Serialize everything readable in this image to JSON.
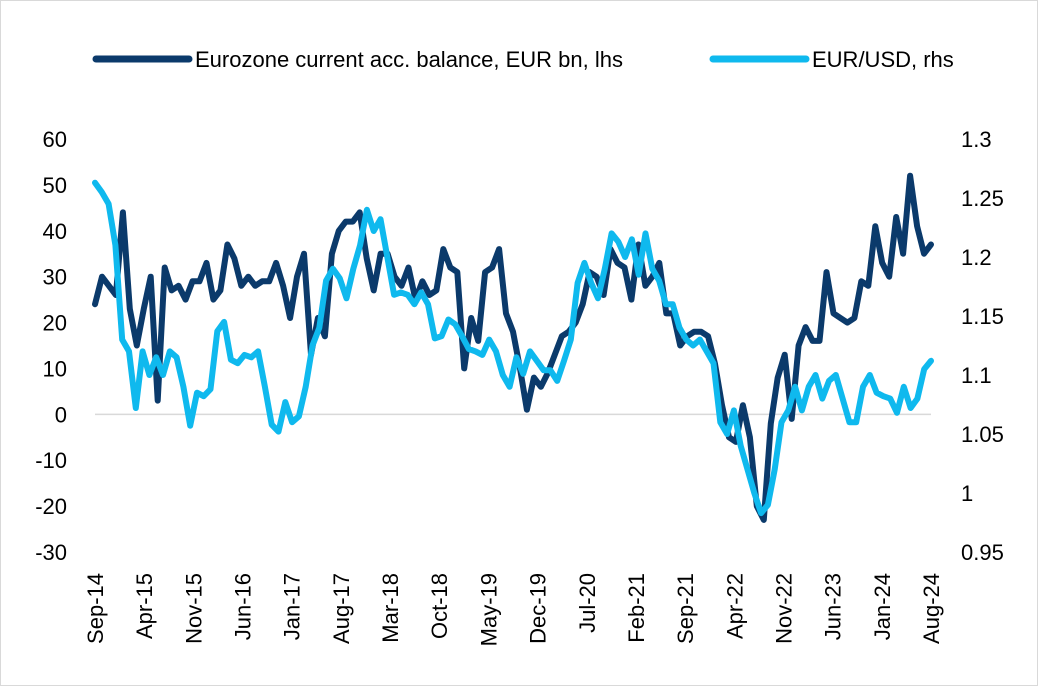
{
  "chart_data": {
    "type": "line",
    "title": "",
    "legend_position": "top",
    "x_tick_labels": [
      "Sep-14",
      "Apr-15",
      "Nov-15",
      "Jun-16",
      "Jan-17",
      "Aug-17",
      "Mar-18",
      "Oct-18",
      "May-19",
      "Dec-19",
      "Jul-20",
      "Feb-21",
      "Sep-21",
      "Apr-22",
      "Nov-22",
      "Jun-23",
      "Jan-24",
      "Aug-24"
    ],
    "y_left": {
      "min": -30,
      "max": 60,
      "step": 10,
      "tick_labels": [
        "60",
        "50",
        "40",
        "30",
        "20",
        "10",
        "0",
        "-10",
        "-20",
        "-30"
      ]
    },
    "y_right": {
      "min": 0.95,
      "max": 1.3,
      "step": 0.05,
      "tick_labels": [
        "1.3",
        "1.25",
        "1.2",
        "1.15",
        "1.1",
        "1.05",
        "1",
        "0.95"
      ]
    },
    "series": [
      {
        "name": "Eurozone current acc. balance, EUR bn, lhs",
        "axis": "left",
        "color": "#0b3a6b",
        "values": [
          24,
          30,
          28,
          26,
          44,
          23,
          15,
          23,
          30,
          3,
          32,
          27,
          28,
          25,
          29,
          29,
          33,
          25,
          27,
          37,
          34,
          28,
          30,
          28,
          29,
          29,
          33,
          28,
          21,
          30,
          35,
          13,
          21,
          17,
          35,
          40,
          42,
          42,
          44,
          34,
          27,
          35,
          35,
          30,
          28,
          32,
          25,
          29,
          26,
          27,
          36,
          32,
          31,
          10,
          21,
          16,
          31,
          32,
          36,
          22,
          18,
          10,
          1,
          8,
          6,
          9,
          13,
          17,
          18,
          20,
          24,
          31,
          30,
          26,
          36,
          33,
          32,
          25,
          37,
          28,
          30,
          33,
          22,
          22,
          15,
          17,
          18,
          18,
          17,
          11,
          2,
          -5,
          -6,
          2,
          -5,
          -20,
          -23,
          -2,
          8,
          13,
          -1,
          15,
          19,
          16,
          16,
          31,
          22,
          21,
          20,
          21,
          29,
          28,
          41,
          33,
          30,
          43,
          35,
          52,
          41,
          35,
          37
        ]
      },
      {
        "name": "EUR/USD, rhs",
        "axis": "right",
        "color": "#0fb9ee",
        "values": [
          1.263,
          1.255,
          1.245,
          1.21,
          1.13,
          1.12,
          1.072,
          1.12,
          1.1,
          1.115,
          1.1,
          1.12,
          1.115,
          1.09,
          1.057,
          1.085,
          1.082,
          1.088,
          1.137,
          1.145,
          1.113,
          1.11,
          1.117,
          1.115,
          1.12,
          1.09,
          1.058,
          1.052,
          1.077,
          1.06,
          1.065,
          1.09,
          1.125,
          1.14,
          1.18,
          1.19,
          1.182,
          1.165,
          1.19,
          1.21,
          1.24,
          1.222,
          1.232,
          1.2,
          1.168,
          1.17,
          1.168,
          1.16,
          1.17,
          1.16,
          1.131,
          1.133,
          1.147,
          1.143,
          1.133,
          1.122,
          1.12,
          1.117,
          1.13,
          1.12,
          1.1,
          1.09,
          1.115,
          1.101,
          1.12,
          1.112,
          1.104,
          1.104,
          1.095,
          1.112,
          1.13,
          1.178,
          1.195,
          1.178,
          1.165,
          1.19,
          1.22,
          1.213,
          1.2,
          1.215,
          1.185,
          1.22,
          1.19,
          1.18,
          1.16,
          1.16,
          1.14,
          1.13,
          1.125,
          1.13,
          1.12,
          1.11,
          1.06,
          1.05,
          1.07,
          1.04,
          1.02,
          1.0,
          0.983,
          0.99,
          1.02,
          1.06,
          1.07,
          1.09,
          1.07,
          1.09,
          1.1,
          1.08,
          1.095,
          1.1,
          1.08,
          1.06,
          1.06,
          1.09,
          1.1,
          1.085,
          1.082,
          1.08,
          1.068,
          1.09,
          1.072,
          1.08,
          1.105,
          1.112
        ]
      }
    ]
  }
}
